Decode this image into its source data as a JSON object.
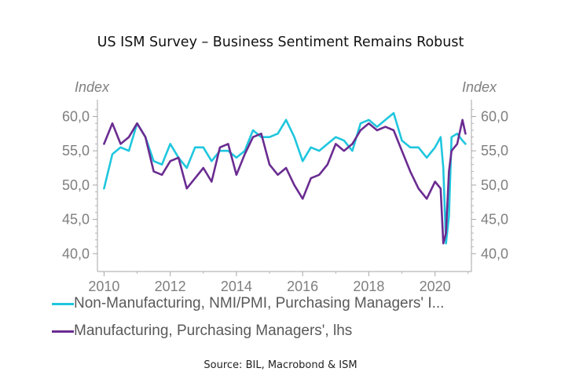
{
  "chart_data": {
    "type": "line",
    "title": "US ISM Survey – Business Sentiment Remains Robust",
    "y_unit_left": "Index",
    "y_unit_right": "Index",
    "ylim": [
      39,
      62
    ],
    "y_ticks": [
      40.0,
      45.0,
      50.0,
      55.0,
      60.0
    ],
    "y_tick_labels": [
      "40,0",
      "45,0",
      "50,0",
      "55,0",
      "60,0"
    ],
    "xlim": [
      2009.8,
      2021.1
    ],
    "x_ticks": [
      2010,
      2012,
      2014,
      2016,
      2018,
      2020
    ],
    "x_tick_labels": [
      "2010",
      "2012",
      "2014",
      "2016",
      "2018",
      "2020"
    ],
    "grid": false,
    "legend_position": "bottom-left",
    "series": [
      {
        "name": "Non-Manufacturing, NMI/PMI, Purchasing Managers' I...",
        "color": "#1fc6de",
        "x": [
          2010.0,
          2010.25,
          2010.5,
          2010.75,
          2011.0,
          2011.25,
          2011.5,
          2011.75,
          2012.0,
          2012.25,
          2012.5,
          2012.75,
          2013.0,
          2013.25,
          2013.5,
          2013.75,
          2014.0,
          2014.25,
          2014.5,
          2014.75,
          2015.0,
          2015.25,
          2015.5,
          2015.75,
          2016.0,
          2016.25,
          2016.5,
          2016.75,
          2017.0,
          2017.25,
          2017.5,
          2017.75,
          2018.0,
          2018.25,
          2018.5,
          2018.75,
          2019.0,
          2019.25,
          2019.5,
          2019.75,
          2020.0,
          2020.17,
          2020.25,
          2020.33,
          2020.42,
          2020.5,
          2020.67,
          2020.83,
          2020.92
        ],
        "y": [
          49.5,
          54.5,
          55.5,
          55.0,
          59.0,
          57.0,
          53.5,
          53.0,
          56.0,
          54.0,
          52.5,
          55.5,
          55.5,
          53.5,
          55.0,
          55.0,
          54.0,
          55.0,
          58.0,
          57.0,
          57.0,
          57.5,
          59.5,
          57.0,
          53.5,
          55.5,
          55.0,
          56.0,
          57.0,
          56.5,
          55.0,
          59.0,
          59.5,
          58.5,
          59.5,
          60.5,
          56.5,
          55.5,
          55.5,
          54.0,
          55.5,
          57.0,
          52.5,
          41.5,
          45.5,
          57.0,
          57.5,
          56.5,
          56.0
        ]
      },
      {
        "name": "Manufacturing, Purchasing Managers', lhs",
        "color": "#6a2c91",
        "x": [
          2010.0,
          2010.25,
          2010.5,
          2010.75,
          2011.0,
          2011.25,
          2011.5,
          2011.75,
          2012.0,
          2012.25,
          2012.5,
          2012.75,
          2013.0,
          2013.25,
          2013.5,
          2013.75,
          2014.0,
          2014.25,
          2014.5,
          2014.75,
          2015.0,
          2015.25,
          2015.5,
          2015.75,
          2016.0,
          2016.25,
          2016.5,
          2016.75,
          2017.0,
          2017.25,
          2017.5,
          2017.75,
          2018.0,
          2018.25,
          2018.5,
          2018.75,
          2019.0,
          2019.25,
          2019.5,
          2019.75,
          2020.0,
          2020.17,
          2020.25,
          2020.33,
          2020.42,
          2020.5,
          2020.67,
          2020.83,
          2020.92
        ],
        "y": [
          56.0,
          59.0,
          56.0,
          57.0,
          59.0,
          57.0,
          52.0,
          51.5,
          53.5,
          54.0,
          49.5,
          51.0,
          52.5,
          50.5,
          55.5,
          56.0,
          51.5,
          54.5,
          57.0,
          57.5,
          53.0,
          51.5,
          52.5,
          50.0,
          48.0,
          51.0,
          51.5,
          53.0,
          56.0,
          55.0,
          56.0,
          58.0,
          59.0,
          58.0,
          58.5,
          58.0,
          55.0,
          52.0,
          49.5,
          48.0,
          50.5,
          49.5,
          41.5,
          43.0,
          52.0,
          55.0,
          56.0,
          59.5,
          57.5
        ]
      }
    ]
  },
  "source_note": "Source: BIL, Macrobond & ISM"
}
